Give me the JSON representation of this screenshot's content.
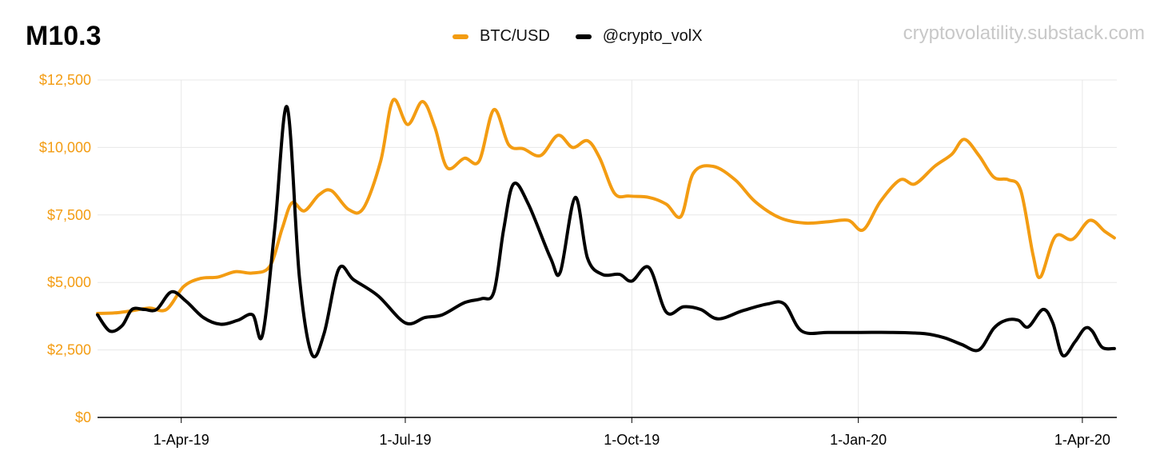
{
  "title": "M10.3",
  "watermark": "cryptovolatility.substack.com",
  "colors": {
    "btc": "#f39c12",
    "vol": "#000000",
    "grid": "#e8e8e8",
    "axis_label": "#f39c12"
  },
  "chart_data": {
    "type": "line",
    "title": "M10.3",
    "legend_position": "top-center",
    "grid": true,
    "x_range": [
      "2019-02-26",
      "2020-04-15"
    ],
    "ylim": [
      0,
      12500
    ],
    "y_ticks": [
      0,
      2500,
      5000,
      7500,
      10000,
      12500
    ],
    "y_tick_labels": [
      "$0",
      "$2,500",
      "$5,000",
      "$7,500",
      "$10,000",
      "$12,500"
    ],
    "x_ticks": [
      "2019-04-01",
      "2019-07-01",
      "2019-10-01",
      "2020-01-01",
      "2020-04-01"
    ],
    "x_tick_labels": [
      "1-Apr-19",
      "1-Jul-19",
      "1-Oct-19",
      "1-Jan-20",
      "1-Apr-20"
    ],
    "series": [
      {
        "name": "BTC/USD",
        "color": "#f39c12",
        "points": [
          [
            "2019-02-26",
            3850
          ],
          [
            "2019-03-05",
            3870
          ],
          [
            "2019-03-12",
            3950
          ],
          [
            "2019-03-19",
            4050
          ],
          [
            "2019-03-26",
            4000
          ],
          [
            "2019-04-02",
            4850
          ],
          [
            "2019-04-09",
            5150
          ],
          [
            "2019-04-16",
            5200
          ],
          [
            "2019-04-23",
            5400
          ],
          [
            "2019-04-30",
            5350
          ],
          [
            "2019-05-07",
            5600
          ],
          [
            "2019-05-12",
            7000
          ],
          [
            "2019-05-16",
            7950
          ],
          [
            "2019-05-21",
            7650
          ],
          [
            "2019-05-27",
            8250
          ],
          [
            "2019-06-01",
            8400
          ],
          [
            "2019-06-08",
            7700
          ],
          [
            "2019-06-14",
            7750
          ],
          [
            "2019-06-21",
            9500
          ],
          [
            "2019-06-26",
            11750
          ],
          [
            "2019-07-02",
            10850
          ],
          [
            "2019-07-08",
            11700
          ],
          [
            "2019-07-13",
            10750
          ],
          [
            "2019-07-18",
            9250
          ],
          [
            "2019-07-25",
            9600
          ],
          [
            "2019-07-31",
            9500
          ],
          [
            "2019-08-06",
            11400
          ],
          [
            "2019-08-12",
            10100
          ],
          [
            "2019-08-18",
            9950
          ],
          [
            "2019-08-25",
            9700
          ],
          [
            "2019-09-01",
            10450
          ],
          [
            "2019-09-07",
            10000
          ],
          [
            "2019-09-13",
            10250
          ],
          [
            "2019-09-18",
            9600
          ],
          [
            "2019-09-24",
            8300
          ],
          [
            "2019-09-30",
            8200
          ],
          [
            "2019-10-08",
            8150
          ],
          [
            "2019-10-15",
            7900
          ],
          [
            "2019-10-21",
            7450
          ],
          [
            "2019-10-26",
            9050
          ],
          [
            "2019-11-03",
            9300
          ],
          [
            "2019-11-12",
            8800
          ],
          [
            "2019-11-20",
            8000
          ],
          [
            "2019-11-30",
            7400
          ],
          [
            "2019-12-10",
            7200
          ],
          [
            "2019-12-20",
            7250
          ],
          [
            "2019-12-28",
            7300
          ],
          [
            "2020-01-03",
            6950
          ],
          [
            "2020-01-10",
            8000
          ],
          [
            "2020-01-18",
            8800
          ],
          [
            "2020-01-24",
            8650
          ],
          [
            "2020-02-01",
            9300
          ],
          [
            "2020-02-08",
            9750
          ],
          [
            "2020-02-13",
            10300
          ],
          [
            "2020-02-19",
            9700
          ],
          [
            "2020-02-25",
            8900
          ],
          [
            "2020-03-02",
            8800
          ],
          [
            "2020-03-07",
            8400
          ],
          [
            "2020-03-12",
            6000
          ],
          [
            "2020-03-15",
            5200
          ],
          [
            "2020-03-21",
            6700
          ],
          [
            "2020-03-28",
            6600
          ],
          [
            "2020-04-04",
            7300
          ],
          [
            "2020-04-10",
            6900
          ],
          [
            "2020-04-14",
            6650
          ]
        ]
      },
      {
        "name": "@crypto_volX",
        "color": "#000000",
        "points": [
          [
            "2019-02-26",
            3800
          ],
          [
            "2019-03-03",
            3200
          ],
          [
            "2019-03-08",
            3400
          ],
          [
            "2019-03-12",
            4000
          ],
          [
            "2019-03-17",
            4000
          ],
          [
            "2019-03-22",
            4000
          ],
          [
            "2019-03-28",
            4650
          ],
          [
            "2019-04-03",
            4300
          ],
          [
            "2019-04-10",
            3700
          ],
          [
            "2019-04-17",
            3450
          ],
          [
            "2019-04-24",
            3600
          ],
          [
            "2019-04-30",
            3800
          ],
          [
            "2019-05-04",
            3050
          ],
          [
            "2019-05-09",
            7000
          ],
          [
            "2019-05-14",
            11500
          ],
          [
            "2019-05-19",
            5200
          ],
          [
            "2019-05-24",
            2350
          ],
          [
            "2019-05-29",
            3100
          ],
          [
            "2019-06-04",
            5500
          ],
          [
            "2019-06-10",
            5100
          ],
          [
            "2019-06-20",
            4500
          ],
          [
            "2019-07-01",
            3500
          ],
          [
            "2019-07-09",
            3700
          ],
          [
            "2019-07-16",
            3800
          ],
          [
            "2019-07-25",
            4250
          ],
          [
            "2019-08-01",
            4400
          ],
          [
            "2019-08-06",
            4650
          ],
          [
            "2019-08-10",
            7000
          ],
          [
            "2019-08-14",
            8650
          ],
          [
            "2019-08-20",
            7900
          ],
          [
            "2019-08-29",
            5900
          ],
          [
            "2019-09-02",
            5400
          ],
          [
            "2019-09-08",
            8150
          ],
          [
            "2019-09-13",
            5900
          ],
          [
            "2019-09-19",
            5300
          ],
          [
            "2019-09-26",
            5300
          ],
          [
            "2019-10-01",
            5050
          ],
          [
            "2019-10-08",
            5550
          ],
          [
            "2019-10-15",
            3900
          ],
          [
            "2019-10-22",
            4100
          ],
          [
            "2019-10-29",
            4000
          ],
          [
            "2019-11-05",
            3650
          ],
          [
            "2019-11-15",
            3950
          ],
          [
            "2019-11-25",
            4200
          ],
          [
            "2019-12-02",
            4200
          ],
          [
            "2019-12-09",
            3200
          ],
          [
            "2019-12-20",
            3150
          ],
          [
            "2020-01-02",
            3150
          ],
          [
            "2020-01-15",
            3150
          ],
          [
            "2020-01-28",
            3100
          ],
          [
            "2020-02-05",
            2950
          ],
          [
            "2020-02-12",
            2700
          ],
          [
            "2020-02-19",
            2500
          ],
          [
            "2020-02-25",
            3300
          ],
          [
            "2020-03-01",
            3600
          ],
          [
            "2020-03-06",
            3600
          ],
          [
            "2020-03-10",
            3350
          ],
          [
            "2020-03-16",
            4000
          ],
          [
            "2020-03-20",
            3500
          ],
          [
            "2020-03-24",
            2300
          ],
          [
            "2020-03-29",
            2800
          ],
          [
            "2020-04-02",
            3300
          ],
          [
            "2020-04-05",
            3200
          ],
          [
            "2020-04-09",
            2600
          ],
          [
            "2020-04-14",
            2550
          ]
        ]
      }
    ]
  }
}
